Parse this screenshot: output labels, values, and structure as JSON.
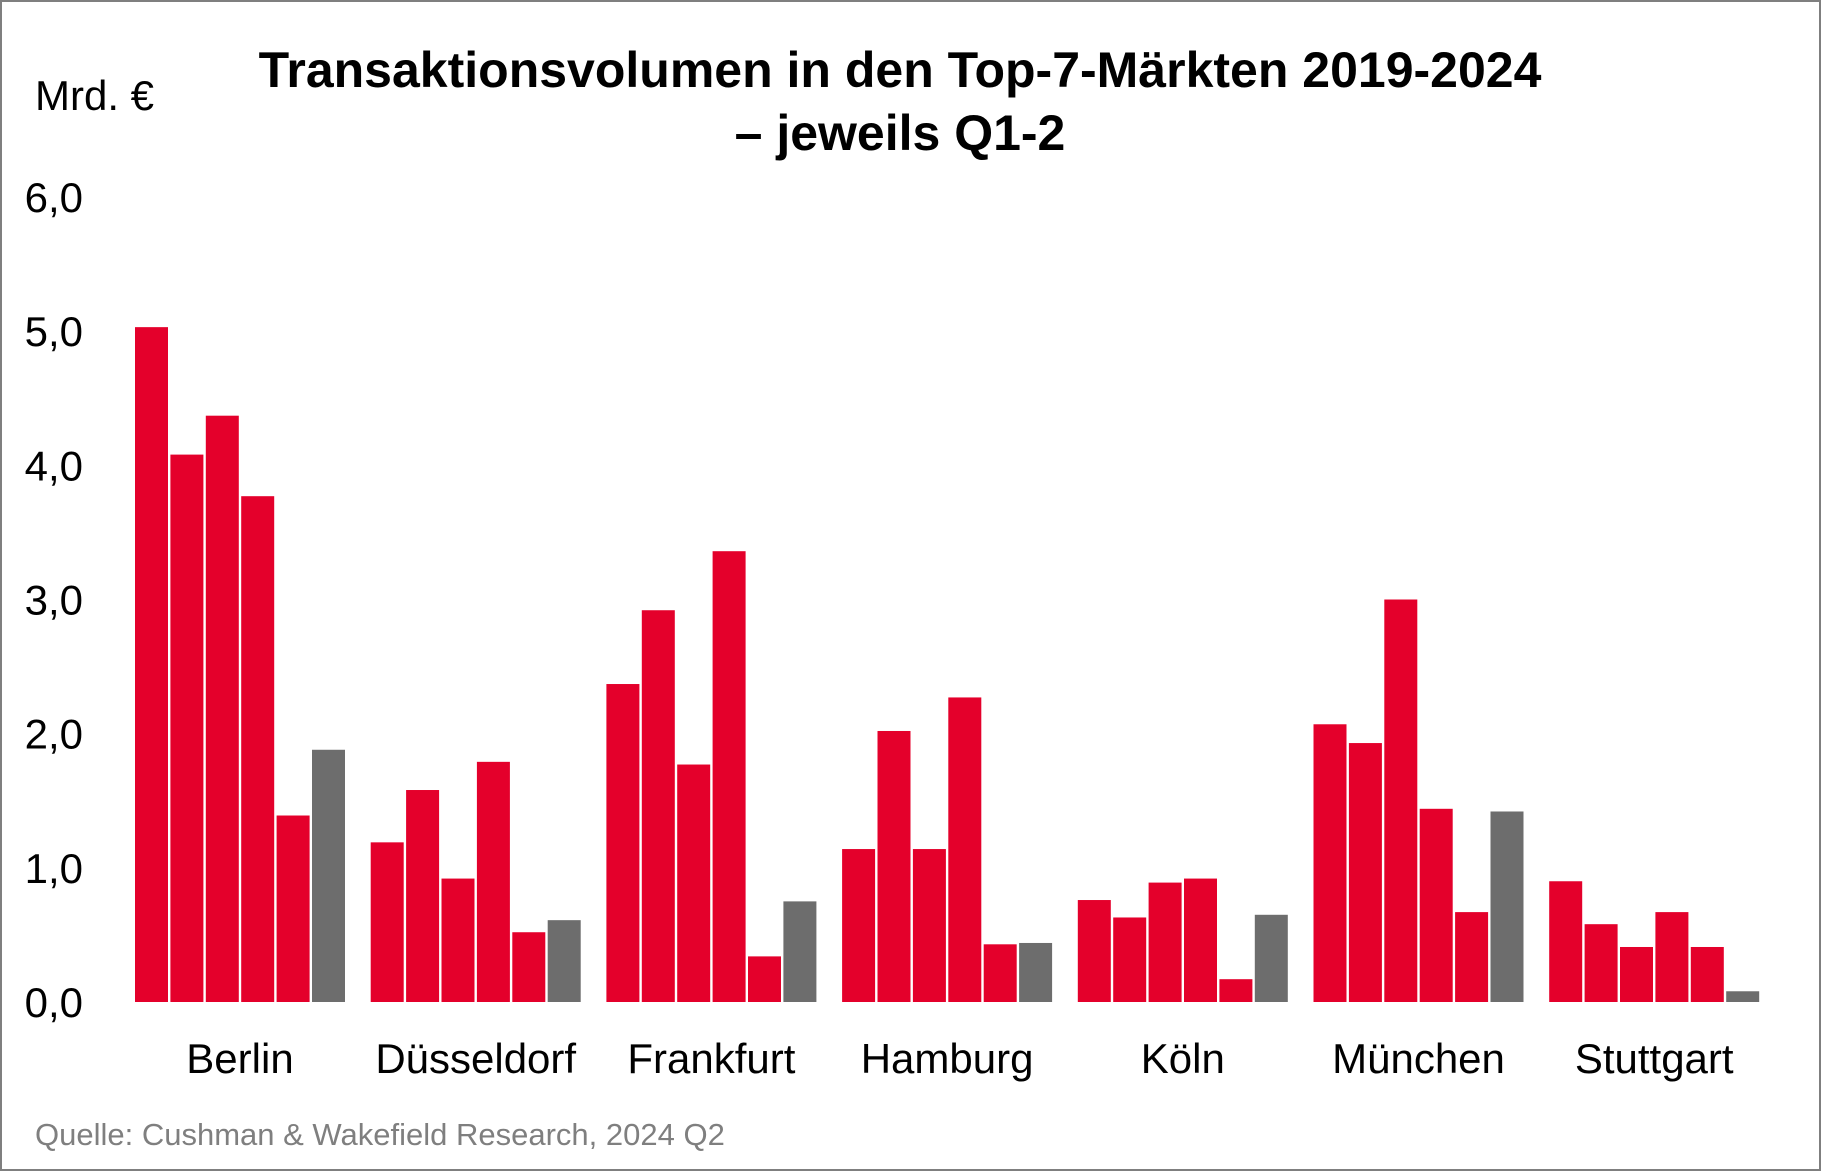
{
  "chart_data": {
    "type": "bar",
    "title_line1": "Transaktionsvolumen in den Top-7-Märkten 2019-2024",
    "title_line2": "– jeweils Q1-2",
    "ylabel": "Mrd. €",
    "xlabel": "",
    "ylim": [
      0,
      6
    ],
    "yticks": [
      "0,0",
      "1,0",
      "2,0",
      "3,0",
      "4,0",
      "5,0",
      "6,0"
    ],
    "categories": [
      "Berlin",
      "Düsseldorf",
      "Frankfurt",
      "Hamburg",
      "Köln",
      "München",
      "Stuttgart"
    ],
    "series": [
      {
        "name": "2019",
        "color": "#e4002b",
        "values": [
          5.03,
          1.19,
          2.37,
          1.14,
          0.76,
          2.07,
          0.9
        ]
      },
      {
        "name": "2020",
        "color": "#e4002b",
        "values": [
          4.08,
          1.58,
          2.92,
          2.02,
          0.63,
          1.93,
          0.58
        ]
      },
      {
        "name": "2021",
        "color": "#e4002b",
        "values": [
          4.37,
          0.92,
          1.77,
          1.14,
          0.89,
          3.0,
          0.41
        ]
      },
      {
        "name": "2022",
        "color": "#e4002b",
        "values": [
          3.77,
          1.79,
          3.36,
          2.27,
          0.92,
          1.44,
          0.67
        ]
      },
      {
        "name": "2023",
        "color": "#e4002b",
        "values": [
          1.39,
          0.52,
          0.34,
          0.43,
          0.17,
          0.67,
          0.41
        ]
      },
      {
        "name": "2024",
        "color": "#6d6d6d",
        "values": [
          1.88,
          0.61,
          0.75,
          0.44,
          0.65,
          1.42,
          0.08
        ]
      }
    ]
  },
  "source": "Quelle: Cushman & Wakefield Research, 2024 Q2"
}
